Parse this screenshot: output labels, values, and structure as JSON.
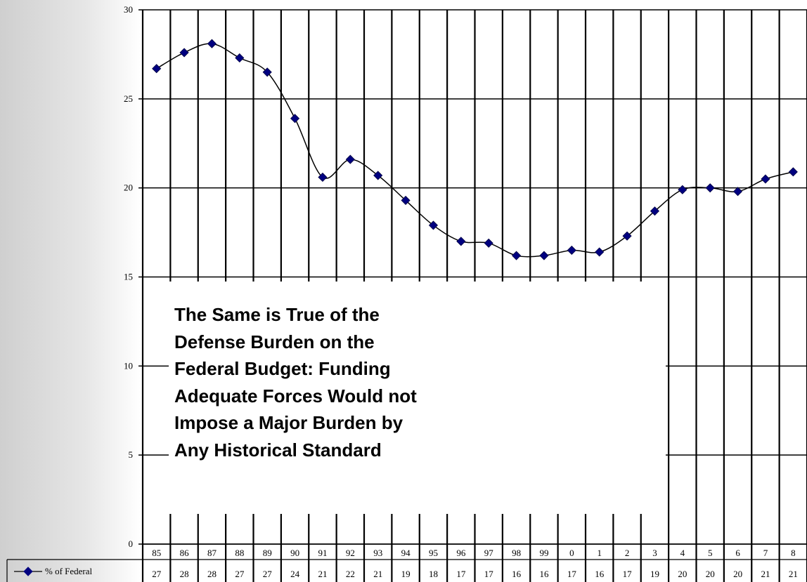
{
  "chart_data": {
    "type": "line",
    "title": "",
    "xlabel": "",
    "ylabel": "",
    "ylim": [
      0,
      30
    ],
    "yticks": [
      0,
      5,
      10,
      15,
      20,
      25,
      30
    ],
    "grid": true,
    "legend": "bottom-left data table",
    "categories": [
      "85",
      "86",
      "87",
      "88",
      "89",
      "90",
      "91",
      "92",
      "93",
      "94",
      "95",
      "96",
      "97",
      "98",
      "99",
      "0",
      "1",
      "2",
      "3",
      "4",
      "5",
      "6",
      "7",
      "8"
    ],
    "series": [
      {
        "name": "% of Federal",
        "color": "#000080",
        "marker": "diamond",
        "values": [
          26.7,
          27.6,
          28.1,
          27.3,
          26.5,
          23.9,
          20.6,
          21.6,
          20.7,
          19.3,
          17.9,
          17.0,
          16.9,
          16.2,
          16.2,
          16.5,
          16.4,
          17.3,
          18.7,
          19.9,
          20.0,
          19.8,
          20.5,
          20.9
        ],
        "table_values": [
          "27",
          "28",
          "28",
          "27",
          "27",
          "24",
          "21",
          "22",
          "21",
          "19",
          "18",
          "17",
          "17",
          "16",
          "16",
          "17",
          "16",
          "17",
          "19",
          "20",
          "20",
          "20",
          "21",
          "21"
        ]
      }
    ]
  },
  "overlay": {
    "lines": [
      "The Same is True of the",
      "Defense Burden on the",
      "Federal Budget: Funding",
      "Adequate Forces Would not",
      "Impose a Major Burden by",
      "Any Historical Standard"
    ]
  }
}
